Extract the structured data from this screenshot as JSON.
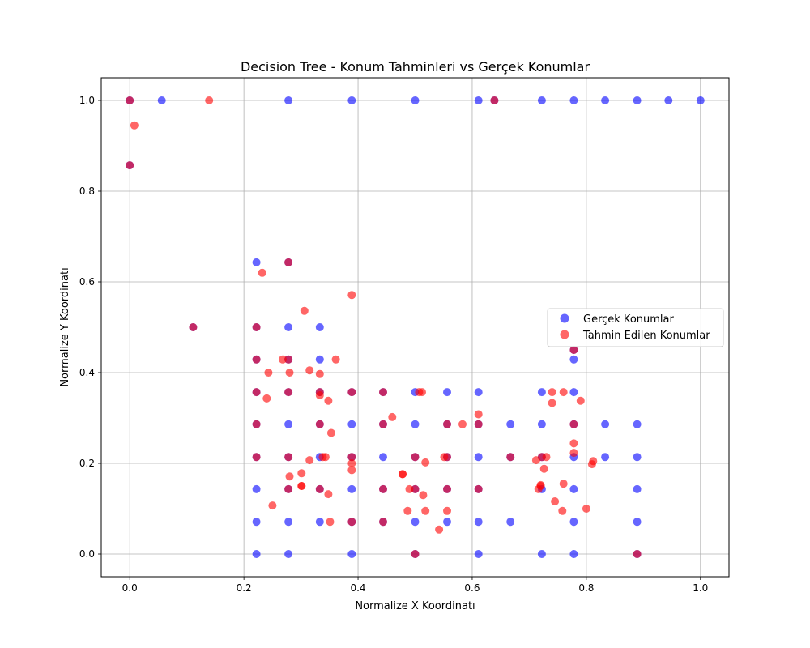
{
  "chart_data": {
    "type": "scatter",
    "title": "Decision Tree - Konum Tahminleri vs Gerçek Konumlar",
    "xlabel": "Normalize X Koordinatı",
    "ylabel": "Normalize Y Koordinatı",
    "xlim": [
      -0.05,
      1.05
    ],
    "ylim": [
      -0.05,
      1.05
    ],
    "xticks": [
      "0.0",
      "0.2",
      "0.4",
      "0.6",
      "0.8",
      "1.0"
    ],
    "yticks": [
      "0.0",
      "0.2",
      "0.4",
      "0.6",
      "0.8",
      "1.0"
    ],
    "grid": true,
    "legend_position": "center-right",
    "series": [
      {
        "name": "Gerçek Konumlar",
        "color": "#0000ff",
        "points": [
          [
            0.0,
            1.0
          ],
          [
            0.056,
            1.0
          ],
          [
            0.278,
            1.0
          ],
          [
            0.389,
            1.0
          ],
          [
            0.5,
            1.0
          ],
          [
            0.611,
            1.0
          ],
          [
            0.639,
            1.0
          ],
          [
            0.722,
            1.0
          ],
          [
            0.778,
            1.0
          ],
          [
            0.833,
            1.0
          ],
          [
            0.889,
            1.0
          ],
          [
            0.944,
            1.0
          ],
          [
            1.0,
            1.0
          ],
          [
            0.0,
            0.857
          ],
          [
            0.111,
            0.5
          ],
          [
            0.222,
            0.643
          ],
          [
            0.278,
            0.643
          ],
          [
            0.278,
            0.5
          ],
          [
            0.333,
            0.5
          ],
          [
            0.222,
            0.5
          ],
          [
            0.222,
            0.429
          ],
          [
            0.278,
            0.429
          ],
          [
            0.333,
            0.429
          ],
          [
            0.778,
            0.429
          ],
          [
            0.778,
            0.45
          ],
          [
            0.222,
            0.357
          ],
          [
            0.278,
            0.357
          ],
          [
            0.333,
            0.357
          ],
          [
            0.389,
            0.357
          ],
          [
            0.444,
            0.357
          ],
          [
            0.5,
            0.357
          ],
          [
            0.556,
            0.357
          ],
          [
            0.611,
            0.357
          ],
          [
            0.722,
            0.357
          ],
          [
            0.778,
            0.357
          ],
          [
            0.222,
            0.286
          ],
          [
            0.278,
            0.286
          ],
          [
            0.333,
            0.286
          ],
          [
            0.389,
            0.286
          ],
          [
            0.444,
            0.286
          ],
          [
            0.5,
            0.286
          ],
          [
            0.556,
            0.286
          ],
          [
            0.611,
            0.286
          ],
          [
            0.667,
            0.286
          ],
          [
            0.722,
            0.286
          ],
          [
            0.778,
            0.286
          ],
          [
            0.833,
            0.286
          ],
          [
            0.889,
            0.286
          ],
          [
            0.222,
            0.214
          ],
          [
            0.278,
            0.214
          ],
          [
            0.333,
            0.214
          ],
          [
            0.389,
            0.214
          ],
          [
            0.444,
            0.214
          ],
          [
            0.5,
            0.214
          ],
          [
            0.556,
            0.214
          ],
          [
            0.611,
            0.214
          ],
          [
            0.667,
            0.214
          ],
          [
            0.722,
            0.214
          ],
          [
            0.778,
            0.214
          ],
          [
            0.833,
            0.214
          ],
          [
            0.889,
            0.214
          ],
          [
            0.222,
            0.143
          ],
          [
            0.278,
            0.143
          ],
          [
            0.333,
            0.143
          ],
          [
            0.389,
            0.143
          ],
          [
            0.444,
            0.143
          ],
          [
            0.5,
            0.143
          ],
          [
            0.556,
            0.143
          ],
          [
            0.611,
            0.143
          ],
          [
            0.722,
            0.143
          ],
          [
            0.778,
            0.143
          ],
          [
            0.889,
            0.143
          ],
          [
            0.222,
            0.071
          ],
          [
            0.278,
            0.071
          ],
          [
            0.333,
            0.071
          ],
          [
            0.389,
            0.071
          ],
          [
            0.444,
            0.071
          ],
          [
            0.5,
            0.071
          ],
          [
            0.556,
            0.071
          ],
          [
            0.611,
            0.071
          ],
          [
            0.667,
            0.071
          ],
          [
            0.778,
            0.071
          ],
          [
            0.889,
            0.071
          ],
          [
            0.222,
            0.0
          ],
          [
            0.278,
            0.0
          ],
          [
            0.389,
            0.0
          ],
          [
            0.5,
            0.0
          ],
          [
            0.611,
            0.0
          ],
          [
            0.722,
            0.0
          ],
          [
            0.778,
            0.0
          ],
          [
            0.889,
            0.0
          ]
        ]
      },
      {
        "name": "Tahmin Edilen Konumlar",
        "color": "#ff0000",
        "points": [
          [
            0.0,
            1.0
          ],
          [
            0.139,
            1.0
          ],
          [
            0.639,
            1.0
          ],
          [
            0.008,
            0.945
          ],
          [
            0.0,
            0.857
          ],
          [
            0.111,
            0.5
          ],
          [
            0.278,
            0.643
          ],
          [
            0.232,
            0.62
          ],
          [
            0.389,
            0.571
          ],
          [
            0.306,
            0.536
          ],
          [
            0.222,
            0.5
          ],
          [
            0.778,
            0.45
          ],
          [
            0.268,
            0.429
          ],
          [
            0.278,
            0.429
          ],
          [
            0.361,
            0.429
          ],
          [
            0.222,
            0.429
          ],
          [
            0.315,
            0.405
          ],
          [
            0.243,
            0.4
          ],
          [
            0.28,
            0.4
          ],
          [
            0.333,
            0.397
          ],
          [
            0.222,
            0.357
          ],
          [
            0.278,
            0.357
          ],
          [
            0.333,
            0.357
          ],
          [
            0.389,
            0.357
          ],
          [
            0.444,
            0.357
          ],
          [
            0.507,
            0.357
          ],
          [
            0.512,
            0.357
          ],
          [
            0.74,
            0.357
          ],
          [
            0.76,
            0.357
          ],
          [
            0.333,
            0.35
          ],
          [
            0.24,
            0.343
          ],
          [
            0.348,
            0.338
          ],
          [
            0.74,
            0.333
          ],
          [
            0.79,
            0.338
          ],
          [
            0.46,
            0.302
          ],
          [
            0.611,
            0.308
          ],
          [
            0.222,
            0.286
          ],
          [
            0.333,
            0.286
          ],
          [
            0.444,
            0.286
          ],
          [
            0.556,
            0.286
          ],
          [
            0.583,
            0.286
          ],
          [
            0.611,
            0.286
          ],
          [
            0.778,
            0.286
          ],
          [
            0.353,
            0.267
          ],
          [
            0.778,
            0.244
          ],
          [
            0.778,
            0.223
          ],
          [
            0.222,
            0.214
          ],
          [
            0.278,
            0.214
          ],
          [
            0.338,
            0.214
          ],
          [
            0.343,
            0.214
          ],
          [
            0.389,
            0.214
          ],
          [
            0.5,
            0.214
          ],
          [
            0.551,
            0.214
          ],
          [
            0.556,
            0.214
          ],
          [
            0.667,
            0.214
          ],
          [
            0.722,
            0.214
          ],
          [
            0.73,
            0.214
          ],
          [
            0.315,
            0.207
          ],
          [
            0.712,
            0.207
          ],
          [
            0.518,
            0.202
          ],
          [
            0.389,
            0.2
          ],
          [
            0.812,
            0.205
          ],
          [
            0.81,
            0.198
          ],
          [
            0.389,
            0.185
          ],
          [
            0.726,
            0.188
          ],
          [
            0.301,
            0.178
          ],
          [
            0.28,
            0.171
          ],
          [
            0.478,
            0.176
          ],
          [
            0.478,
            0.176
          ],
          [
            0.301,
            0.15
          ],
          [
            0.301,
            0.15
          ],
          [
            0.72,
            0.15
          ],
          [
            0.72,
            0.152
          ],
          [
            0.76,
            0.155
          ],
          [
            0.278,
            0.143
          ],
          [
            0.333,
            0.143
          ],
          [
            0.444,
            0.143
          ],
          [
            0.49,
            0.143
          ],
          [
            0.5,
            0.143
          ],
          [
            0.556,
            0.143
          ],
          [
            0.611,
            0.143
          ],
          [
            0.716,
            0.143
          ],
          [
            0.348,
            0.132
          ],
          [
            0.514,
            0.13
          ],
          [
            0.745,
            0.116
          ],
          [
            0.25,
            0.107
          ],
          [
            0.487,
            0.095
          ],
          [
            0.518,
            0.095
          ],
          [
            0.556,
            0.095
          ],
          [
            0.758,
            0.095
          ],
          [
            0.8,
            0.1
          ],
          [
            0.351,
            0.071
          ],
          [
            0.389,
            0.071
          ],
          [
            0.444,
            0.071
          ],
          [
            0.542,
            0.054
          ],
          [
            0.5,
            0.0
          ],
          [
            0.889,
            0.0
          ]
        ]
      }
    ]
  }
}
